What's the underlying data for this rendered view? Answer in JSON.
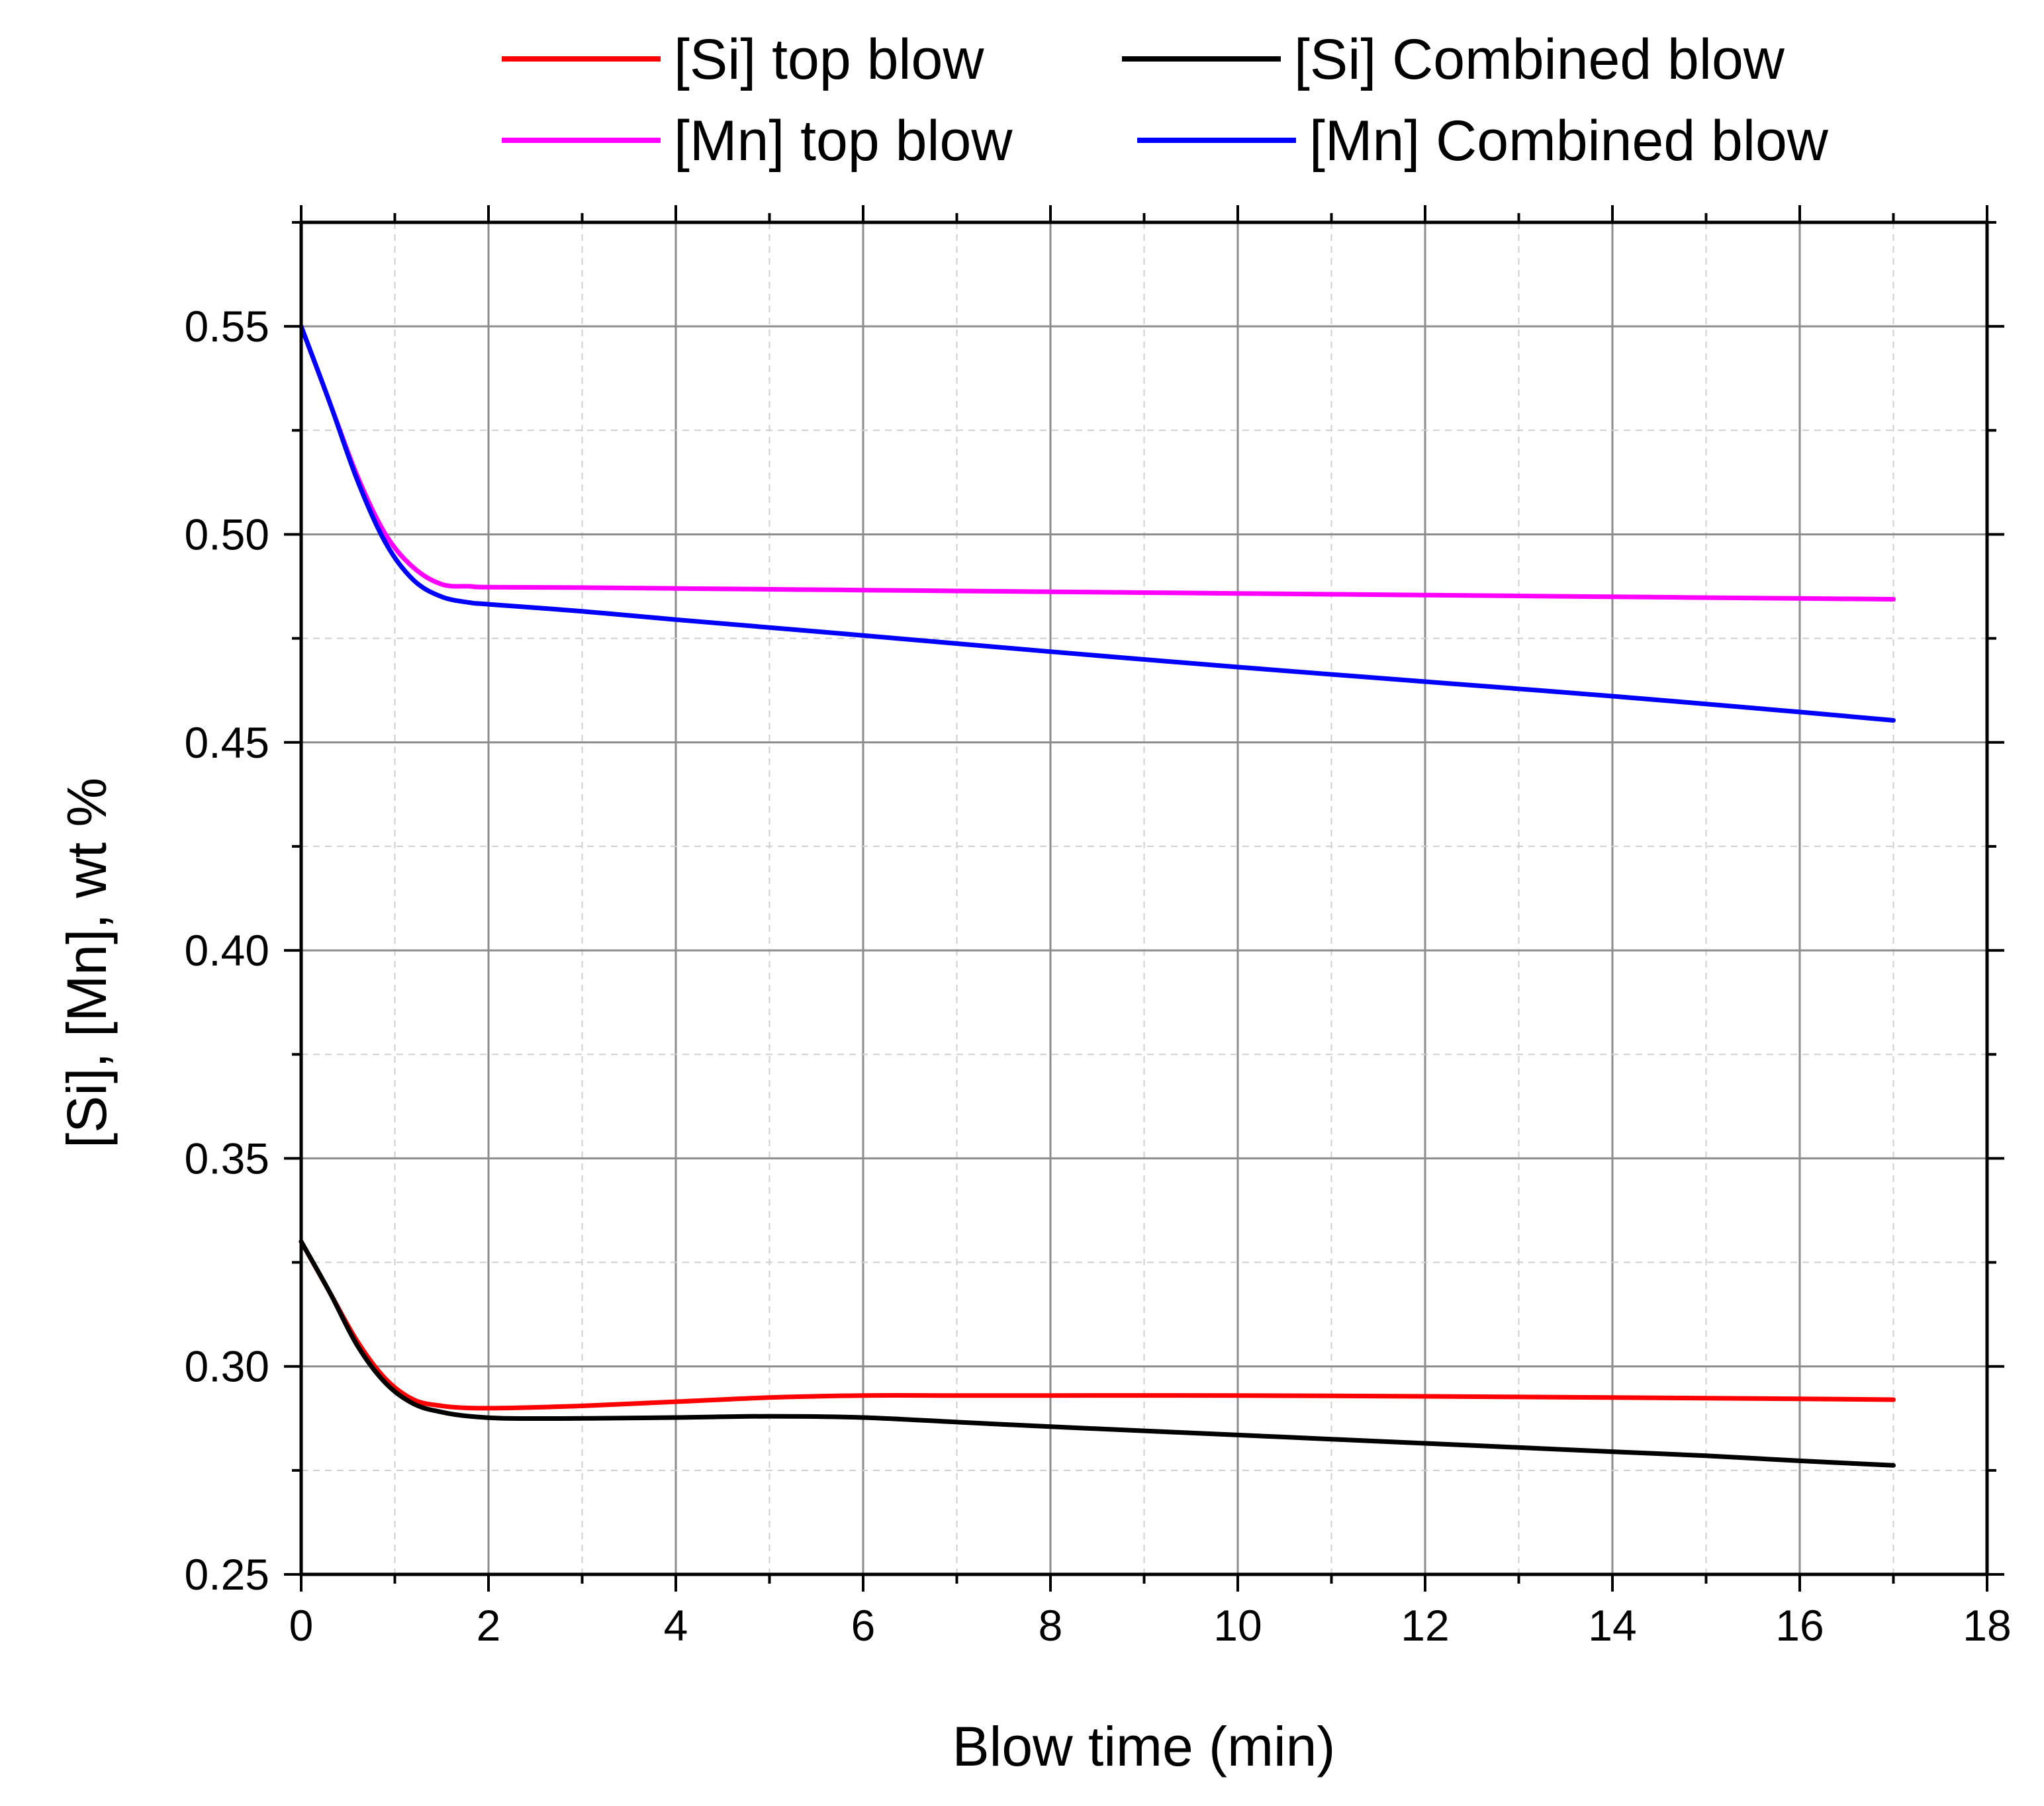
{
  "chart_data": {
    "type": "line",
    "xlabel": "Blow time (min)",
    "ylabel": "[Si], [Mn], wt %",
    "xlim": [
      0,
      18
    ],
    "ylim": [
      0.25,
      0.575
    ],
    "x_major_ticks": [
      0,
      2,
      4,
      6,
      8,
      10,
      12,
      14,
      16,
      18
    ],
    "x_tick_labels": [
      "0",
      "2",
      "4",
      "6",
      "8",
      "10",
      "12",
      "14",
      "16",
      "18"
    ],
    "y_major_ticks": [
      0.25,
      0.3,
      0.35,
      0.4,
      0.45,
      0.5,
      0.55
    ],
    "y_tick_labels": [
      "0.25",
      "0.30",
      "0.35",
      "0.40",
      "0.45",
      "0.50",
      "0.55"
    ],
    "grid": true,
    "legend_position": "top",
    "series": [
      {
        "name": "[Si] top blow",
        "color": "#ff0000",
        "x": [
          0,
          0.3,
          0.6,
          0.9,
          1.2,
          1.5,
          1.8,
          2.2,
          3,
          4,
          5,
          6,
          7,
          8,
          10,
          12,
          14,
          16,
          17
        ],
        "values": [
          0.33,
          0.318,
          0.306,
          0.297,
          0.292,
          0.2905,
          0.29,
          0.29,
          0.2905,
          0.2915,
          0.2925,
          0.293,
          0.293,
          0.293,
          0.293,
          0.2928,
          0.2925,
          0.2922,
          0.292
        ]
      },
      {
        "name": "[Si] Combined blow",
        "color": "#000000",
        "x": [
          0,
          0.3,
          0.6,
          0.9,
          1.2,
          1.5,
          1.8,
          2.2,
          3,
          4,
          5,
          6,
          7,
          8,
          9,
          10,
          11,
          12,
          13,
          14,
          15,
          16,
          17
        ],
        "values": [
          0.33,
          0.318,
          0.305,
          0.296,
          0.291,
          0.289,
          0.288,
          0.2875,
          0.2875,
          0.2877,
          0.288,
          0.2877,
          0.2866,
          0.2855,
          0.2845,
          0.2835,
          0.2825,
          0.2815,
          0.2805,
          0.2795,
          0.2785,
          0.2773,
          0.2762
        ]
      },
      {
        "name": "[Mn] top blow",
        "color": "#ff00ff",
        "x": [
          0,
          0.3,
          0.6,
          0.9,
          1.2,
          1.5,
          1.8,
          2,
          3,
          4,
          6,
          8,
          10,
          12,
          14,
          16,
          17
        ],
        "values": [
          0.55,
          0.532,
          0.514,
          0.5,
          0.492,
          0.488,
          0.4875,
          0.4873,
          0.4872,
          0.487,
          0.4866,
          0.4862,
          0.4858,
          0.4854,
          0.485,
          0.4846,
          0.4844
        ]
      },
      {
        "name": "[Mn] Combined blow",
        "color": "#0000ff",
        "x": [
          0,
          0.3,
          0.6,
          0.9,
          1.2,
          1.5,
          1.8,
          2,
          3,
          4,
          6,
          8,
          10,
          12,
          14,
          16,
          17
        ],
        "values": [
          0.55,
          0.532,
          0.513,
          0.498,
          0.489,
          0.485,
          0.4836,
          0.4832,
          0.4815,
          0.4795,
          0.4757,
          0.4718,
          0.4681,
          0.4646,
          0.4611,
          0.4573,
          0.4553
        ]
      }
    ]
  }
}
